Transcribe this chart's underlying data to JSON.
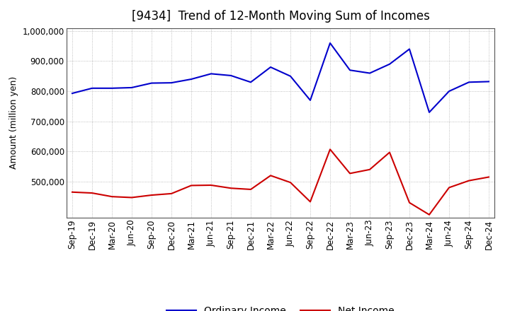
{
  "title": "[9434]  Trend of 12-Month Moving Sum of Incomes",
  "ylabel": "Amount (million yen)",
  "ordinary_income": {
    "label": "Ordinary Income",
    "color": "#0000cc",
    "x": [
      "Sep-19",
      "Dec-19",
      "Mar-20",
      "Jun-20",
      "Sep-20",
      "Dec-20",
      "Mar-21",
      "Jun-21",
      "Sep-21",
      "Dec-21",
      "Mar-22",
      "Jun-22",
      "Sep-22",
      "Dec-22",
      "Mar-23",
      "Jun-23",
      "Sep-23",
      "Dec-23",
      "Mar-24",
      "Jun-24",
      "Sep-24",
      "Dec-24"
    ],
    "y": [
      793000,
      810000,
      810000,
      812000,
      827000,
      828000,
      840000,
      858000,
      852000,
      830000,
      880000,
      850000,
      770000,
      960000,
      870000,
      860000,
      890000,
      940000,
      730000,
      800000,
      830000,
      832000
    ]
  },
  "net_income": {
    "label": "Net Income",
    "color": "#cc0000",
    "x": [
      "Sep-19",
      "Dec-19",
      "Mar-20",
      "Jun-20",
      "Sep-20",
      "Dec-20",
      "Mar-21",
      "Jun-21",
      "Sep-21",
      "Dec-21",
      "Mar-22",
      "Jun-22",
      "Sep-22",
      "Dec-22",
      "Mar-23",
      "Jun-23",
      "Sep-23",
      "Dec-23",
      "Mar-24",
      "Jun-24",
      "Sep-24",
      "Dec-24"
    ],
    "y": [
      465000,
      462000,
      450000,
      447000,
      455000,
      460000,
      487000,
      488000,
      478000,
      474000,
      520000,
      497000,
      433000,
      607000,
      527000,
      540000,
      597000,
      430000,
      390000,
      480000,
      503000,
      515000
    ]
  },
  "ylim": [
    380000,
    1010000
  ],
  "yticks": [
    500000,
    600000,
    700000,
    800000,
    900000,
    1000000
  ],
  "background_color": "#ffffff",
  "plot_bg_color": "#ffffff",
  "grid_color": "#999999",
  "title_fontsize": 12,
  "axis_label_fontsize": 9,
  "tick_fontsize": 8.5,
  "legend_fontsize": 10
}
